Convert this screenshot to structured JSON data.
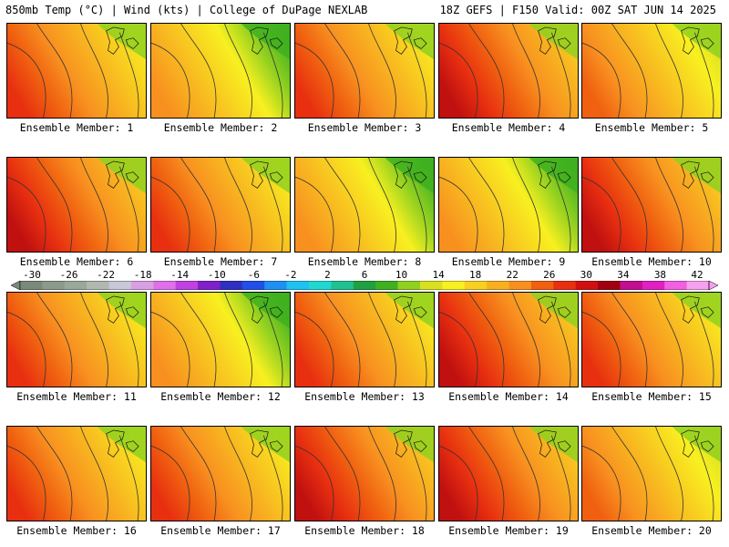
{
  "header": {
    "left_title": "850mb Temp (°C) | Wind (kts) | College of DuPage NEXLAB",
    "right_title": "18Z GEFS | F150 Valid: 00Z SAT JUN 14 2025"
  },
  "panels": [
    {
      "label": "Ensemble Member: 1",
      "theme": "warm"
    },
    {
      "label": "Ensemble Member: 2",
      "theme": "cool"
    },
    {
      "label": "Ensemble Member: 3",
      "theme": "warm"
    },
    {
      "label": "Ensemble Member: 4",
      "theme": "hot"
    },
    {
      "label": "Ensemble Member: 5",
      "theme": "mild"
    },
    {
      "label": "Ensemble Member: 6",
      "theme": "hot"
    },
    {
      "label": "Ensemble Member: 7",
      "theme": "warm"
    },
    {
      "label": "Ensemble Member: 8",
      "theme": "cool"
    },
    {
      "label": "Ensemble Member: 9",
      "theme": "cool"
    },
    {
      "label": "Ensemble Member: 10",
      "theme": "hot"
    },
    {
      "label": "Ensemble Member: 11",
      "theme": "warm"
    },
    {
      "label": "Ensemble Member: 12",
      "theme": "cool"
    },
    {
      "label": "Ensemble Member: 13",
      "theme": "warm"
    },
    {
      "label": "Ensemble Member: 14",
      "theme": "hot"
    },
    {
      "label": "Ensemble Member: 15",
      "theme": "warm"
    },
    {
      "label": "Ensemble Member: 16",
      "theme": "warm"
    },
    {
      "label": "Ensemble Member: 17",
      "theme": "warm"
    },
    {
      "label": "Ensemble Member: 18",
      "theme": "hot"
    },
    {
      "label": "Ensemble Member: 19",
      "theme": "hot"
    },
    {
      "label": "Ensemble Member: 20",
      "theme": "mild"
    }
  ],
  "colorbar": {
    "ticks": [
      "-30",
      "-26",
      "-22",
      "-18",
      "-14",
      "-10",
      "-6",
      "-2",
      "2",
      "6",
      "10",
      "14",
      "18",
      "22",
      "26",
      "30",
      "34",
      "38",
      "42"
    ],
    "colors": [
      "#7a8a7a",
      "#8c9a8c",
      "#9aa89a",
      "#b0b8b0",
      "#c8c8d8",
      "#d8a0e0",
      "#e070e8",
      "#c040e0",
      "#8020c8",
      "#3030c0",
      "#2050e8",
      "#2090f0",
      "#20c0f0",
      "#20d8d0",
      "#20c090",
      "#20a040",
      "#40b020",
      "#90d020",
      "#d8e020",
      "#f8f020",
      "#f8d020",
      "#f8b020",
      "#f89020",
      "#f06010",
      "#e83010",
      "#d01010",
      "#a00010",
      "#c01090",
      "#e020c0",
      "#f060e0",
      "#f8a0f0"
    ],
    "theme_colors": {
      "hot": [
        "#c01010",
        "#e83010",
        "#f06010",
        "#f89020",
        "#f8b020",
        "#f8d020"
      ],
      "warm": [
        "#e83010",
        "#f06010",
        "#f89020",
        "#f8b020",
        "#f8d020",
        "#f8f020"
      ],
      "mild": [
        "#f06010",
        "#f89020",
        "#f8b020",
        "#f8d020",
        "#f8f020",
        "#d8e020"
      ],
      "cool": [
        "#f89020",
        "#f8b020",
        "#f8d020",
        "#f8f020",
        "#90d020",
        "#40b020"
      ]
    }
  }
}
